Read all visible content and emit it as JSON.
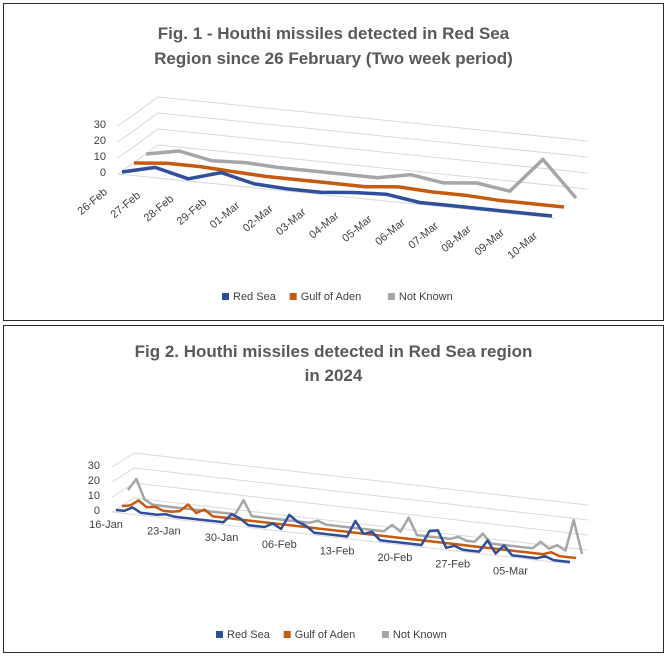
{
  "chart_data": [
    {
      "type": "line",
      "title_line1": "Fig. 1 - Houthi missiles detected in Red Sea",
      "title_line2": "Region since 26 February (Two week period)",
      "categories": [
        "26-Feb",
        "27-Feb",
        "28-Feb",
        "29-Feb",
        "01-Mar",
        "02-Mar",
        "03-Mar",
        "04-Mar",
        "05-Mar",
        "06-Mar",
        "07-Mar",
        "08-Mar",
        "09-Mar",
        "10-Mar"
      ],
      "y_ticks": [
        "0",
        "10",
        "20",
        "30"
      ],
      "ylim": [
        0,
        30
      ],
      "grid": true,
      "legend_position": "bottom",
      "series": [
        {
          "name": "Red Sea",
          "color": "#2f4f9b",
          "values": [
            0,
            5,
            0,
            6,
            1,
            0,
            0,
            2,
            3,
            0,
            0,
            0,
            0,
            0
          ]
        },
        {
          "name": "Gulf of Aden",
          "color": "#c55a11",
          "values": [
            0,
            2,
            2,
            1,
            0,
            0,
            0,
            0,
            2,
            1,
            1,
            0,
            0,
            0
          ]
        },
        {
          "name": "Not Known",
          "color": "#a6a6a6",
          "values": [
            0,
            4,
            0,
            1,
            0,
            0,
            0,
            0,
            4,
            1,
            3,
            0,
            22,
            0
          ]
        }
      ]
    },
    {
      "type": "line",
      "title_line1": "Fig 2. Houthi missiles detected in Red Sea region",
      "title_line2": "in 2024",
      "x_tick_labels": [
        "16-Jan",
        "23-Jan",
        "30-Jan",
        "06-Feb",
        "13-Feb",
        "20-Feb",
        "27-Feb",
        "05-Mar"
      ],
      "days": 56,
      "y_ticks": [
        "0",
        "10",
        "20",
        "30"
      ],
      "ylim": [
        0,
        30
      ],
      "grid": true,
      "legend_position": "bottom",
      "series": [
        {
          "name": "Red Sea",
          "color": "#2f4f9b",
          "values": [
            0,
            0,
            3,
            0,
            0,
            0,
            1,
            0,
            0,
            0,
            0,
            0,
            0,
            0,
            6,
            4,
            0,
            0,
            0,
            3,
            0,
            10,
            6,
            4,
            0,
            0,
            0,
            0,
            0,
            11,
            3,
            5,
            0,
            0,
            0,
            0,
            0,
            0,
            10,
            11,
            0,
            2,
            0,
            0,
            0,
            8,
            0,
            6,
            0,
            0,
            0,
            0,
            2,
            0,
            0,
            0
          ]
        },
        {
          "name": "Gulf of Aden",
          "color": "#c55a11",
          "values": [
            0,
            1,
            5,
            1,
            2,
            0,
            0,
            1,
            6,
            1,
            4,
            0,
            0,
            0,
            0,
            0,
            0,
            0,
            0,
            0,
            0,
            0,
            0,
            0,
            0,
            0,
            0,
            0,
            0,
            0,
            0,
            0,
            0,
            0,
            0,
            0,
            0,
            0,
            0,
            0,
            0,
            0,
            0,
            0,
            0,
            0,
            0,
            0,
            0,
            0,
            0,
            0,
            2,
            0,
            0,
            0
          ]
        },
        {
          "name": "Not Known",
          "color": "#a6a6a6",
          "values": [
            8,
            16,
            3,
            0,
            0,
            0,
            0,
            0,
            0,
            0,
            0,
            0,
            0,
            0,
            10,
            0,
            0,
            0,
            0,
            0,
            0,
            0,
            0,
            2,
            0,
            0,
            0,
            0,
            0,
            0,
            0,
            0,
            5,
            1,
            11,
            0,
            0,
            0,
            0,
            0,
            2,
            0,
            0,
            6,
            0,
            0,
            0,
            0,
            0,
            0,
            5,
            1,
            4,
            1,
            22,
            0
          ]
        }
      ]
    }
  ]
}
